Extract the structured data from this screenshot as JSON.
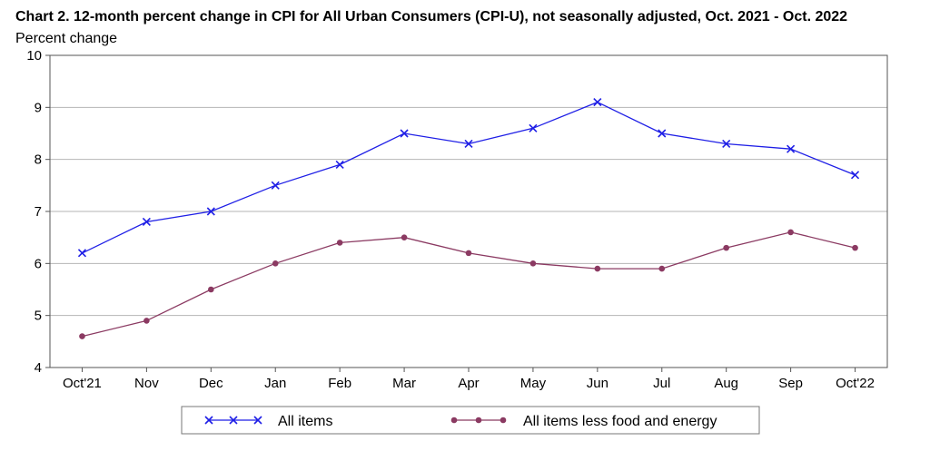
{
  "chart_data": {
    "type": "line",
    "title": "Chart 2. 12-month percent change in CPI for All Urban Consumers (CPI-U), not seasonally adjusted, Oct. 2021 - Oct. 2022",
    "ylabel": "Percent change",
    "xlabel": "",
    "categories": [
      "Oct'21",
      "Nov",
      "Dec",
      "Jan",
      "Feb",
      "Mar",
      "Apr",
      "May",
      "Jun",
      "Jul",
      "Aug",
      "Sep",
      "Oct'22"
    ],
    "ylim": [
      4,
      10
    ],
    "yticks": [
      4,
      5,
      6,
      7,
      8,
      9,
      10
    ],
    "grid": true,
    "legend_position": "bottom",
    "series": [
      {
        "name": "All items",
        "color": "#1f1fe6",
        "marker": "x",
        "values": [
          6.2,
          6.8,
          7.0,
          7.5,
          7.9,
          8.5,
          8.3,
          8.6,
          9.1,
          8.5,
          8.3,
          8.2,
          7.7
        ]
      },
      {
        "name": "All items less food and energy",
        "color": "#8b3a62",
        "marker": "circle",
        "values": [
          4.6,
          4.9,
          5.5,
          6.0,
          6.4,
          6.5,
          6.2,
          6.0,
          5.9,
          5.9,
          6.3,
          6.6,
          6.3
        ]
      }
    ]
  }
}
